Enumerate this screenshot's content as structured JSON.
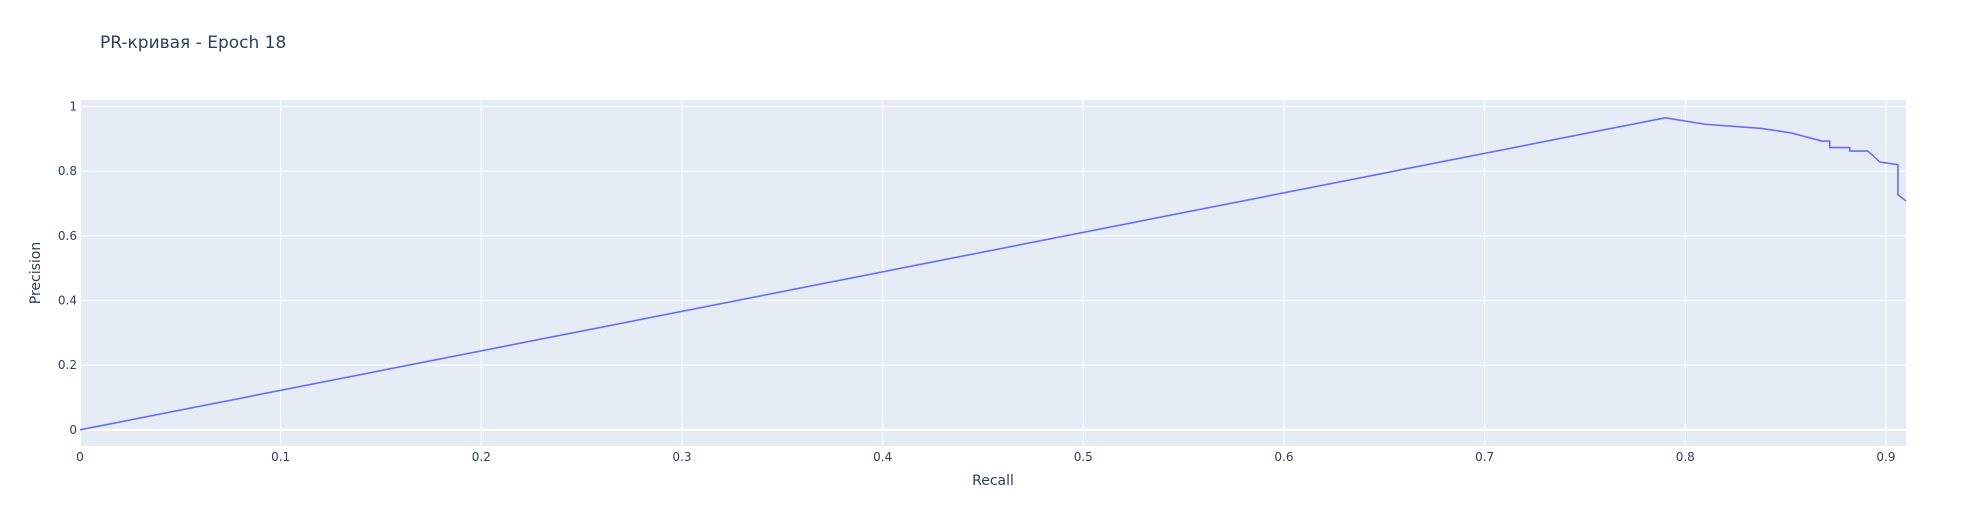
{
  "chart_data": {
    "type": "line",
    "title": "PR-кривая - Epoch 18",
    "xlabel": "Recall",
    "ylabel": "Precision",
    "xlim": [
      0,
      0.91
    ],
    "ylim": [
      -0.05,
      1.02
    ],
    "grid": true,
    "legend": "none",
    "x_ticks": [
      0,
      0.1,
      0.2,
      0.3,
      0.4,
      0.5,
      0.6,
      0.7,
      0.8,
      0.9
    ],
    "x_tick_labels": [
      "0",
      "0.1",
      "0.2",
      "0.3",
      "0.4",
      "0.5",
      "0.6",
      "0.7",
      "0.8",
      "0.9"
    ],
    "y_ticks": [
      0,
      0.2,
      0.4,
      0.6,
      0.8,
      1
    ],
    "y_tick_labels": [
      "0",
      "0.2",
      "0.4",
      "0.6",
      "0.8",
      "1"
    ],
    "series": [
      {
        "color": "#636efa",
        "x": [
          0,
          0.79,
          0.81,
          0.838,
          0.853,
          0.868,
          0.872,
          0.872,
          0.882,
          0.882,
          0.891,
          0.894,
          0.897,
          0.906,
          0.906,
          0.91
        ],
        "y": [
          0,
          0.965,
          0.945,
          0.932,
          0.918,
          0.893,
          0.893,
          0.873,
          0.873,
          0.862,
          0.862,
          0.845,
          0.828,
          0.82,
          0.727,
          0.708
        ]
      }
    ]
  }
}
